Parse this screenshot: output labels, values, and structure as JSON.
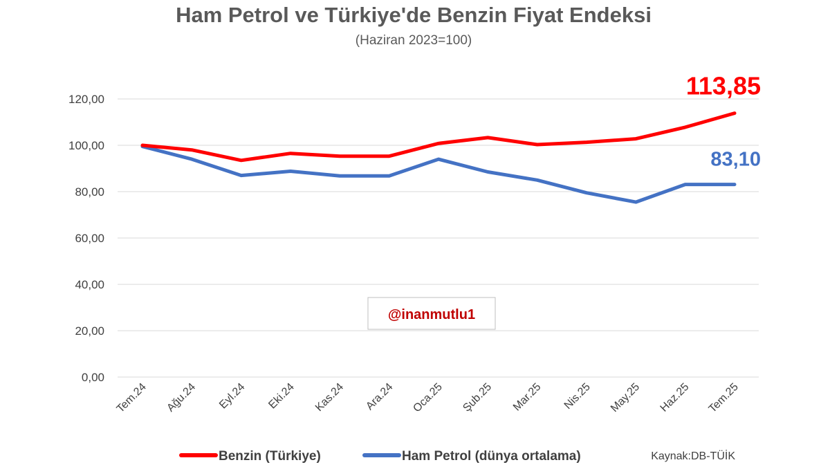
{
  "chart_data": {
    "type": "line",
    "title": "Ham Petrol ve Türkiye'de Benzin Fiyat Endeksi",
    "subtitle": "(Haziran 2023=100)",
    "categories": [
      "Tem.24",
      "Ağu.24",
      "Eyl.24",
      "Eki.24",
      "Kas.24",
      "Ara.24",
      "Oca.25",
      "Şub.25",
      "Mar.25",
      "Nis.25",
      "May.25",
      "Haz.25",
      "Tem.25"
    ],
    "ylim": [
      0,
      120
    ],
    "yticks": [
      "0,00",
      "20,00",
      "40,00",
      "60,00",
      "80,00",
      "100,00",
      "120,00"
    ],
    "ytick_values": [
      0,
      20,
      40,
      60,
      80,
      100,
      120
    ],
    "grid": true,
    "legend_position": "bottom",
    "series": [
      {
        "name": "Benzin (Türkiye)",
        "color": "#ff0000",
        "values": [
          100.0,
          98.0,
          93.5,
          96.5,
          95.3,
          95.3,
          100.8,
          103.3,
          100.3,
          101.3,
          102.8,
          107.8,
          113.85
        ],
        "end_label": "113,85"
      },
      {
        "name": "Ham Petrol (dünya ortalama)",
        "color": "#4472c4",
        "values": [
          99.5,
          94.0,
          87.0,
          88.8,
          86.8,
          86.8,
          94.0,
          88.5,
          85.0,
          79.5,
          75.5,
          83.1,
          83.1
        ],
        "end_label": "83,10"
      }
    ],
    "source": "Kaynak:DB-TÜİK",
    "watermark": "@inanmutlu1",
    "watermark_color": "#c00000"
  }
}
